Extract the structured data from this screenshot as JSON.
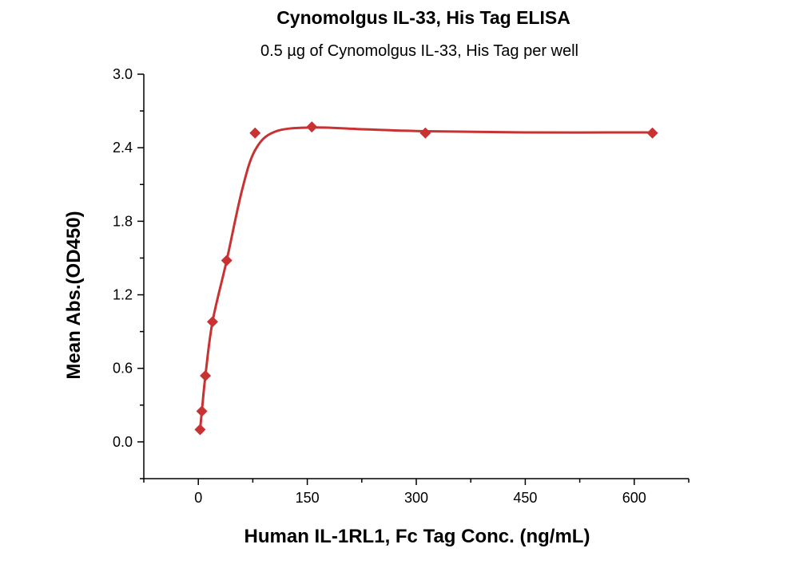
{
  "chart_data": {
    "type": "scatter",
    "title": "Cynomolgus IL-33, His Tag ELISA",
    "subtitle": "0.5 µg of Cynomolgus IL-33, His Tag per well",
    "xlabel": "Human IL-1RL1, Fc Tag Conc. (ng/mL)",
    "ylabel": "Mean Abs.(OD450)",
    "xlim": [
      -75,
      675
    ],
    "ylim": [
      -0.3,
      3.0
    ],
    "xticks": [
      "0",
      "150",
      "300",
      "450",
      "600"
    ],
    "yticks": [
      "0.0",
      "0.6",
      "1.2",
      "1.8",
      "2.4",
      "3.0"
    ],
    "grid": false,
    "color": "#c83232",
    "marker": "diamond",
    "series": [
      {
        "x": [
          2.44,
          4.88,
          9.77,
          19.53,
          39.06,
          78.13,
          156.25,
          312.5,
          625
        ],
        "y": [
          0.1,
          0.25,
          0.54,
          0.98,
          1.48,
          2.52,
          2.57,
          2.52,
          2.52
        ]
      }
    ]
  }
}
